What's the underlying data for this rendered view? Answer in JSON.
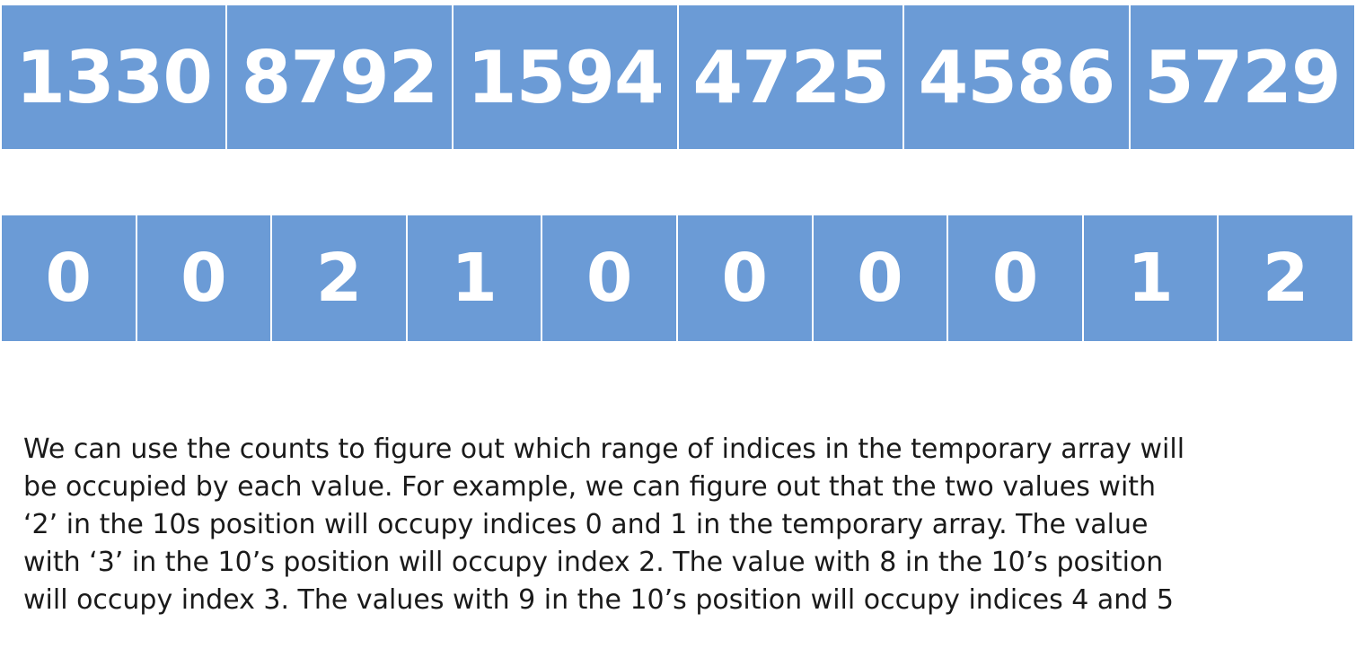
{
  "values_array": {
    "cells": [
      "1330",
      "8792",
      "1594",
      "4725",
      "4586",
      "5729"
    ]
  },
  "counts_array": {
    "cells": [
      "0",
      "0",
      "2",
      "1",
      "0",
      "0",
      "0",
      "0",
      "1",
      "2"
    ]
  },
  "explanation": {
    "lines": [
      "We can use the counts to figure out which range of indices in the temporary array will",
      "be occupied by each value. For example, we can figure out that the two values with",
      "‘2’ in the 10s position will occupy indices 0 and 1 in the temporary array. The value",
      "with ‘3’ in the 10’s position will occupy index 2. The value with 8 in the 10’s position",
      "will occupy index 3. The values with 9 in the 10’s position will occupy indices 4 and 5"
    ]
  },
  "colors": {
    "cell_fill": "#6b9bd6",
    "cell_text": "#ffffff",
    "body_text": "#1a1a1a"
  }
}
